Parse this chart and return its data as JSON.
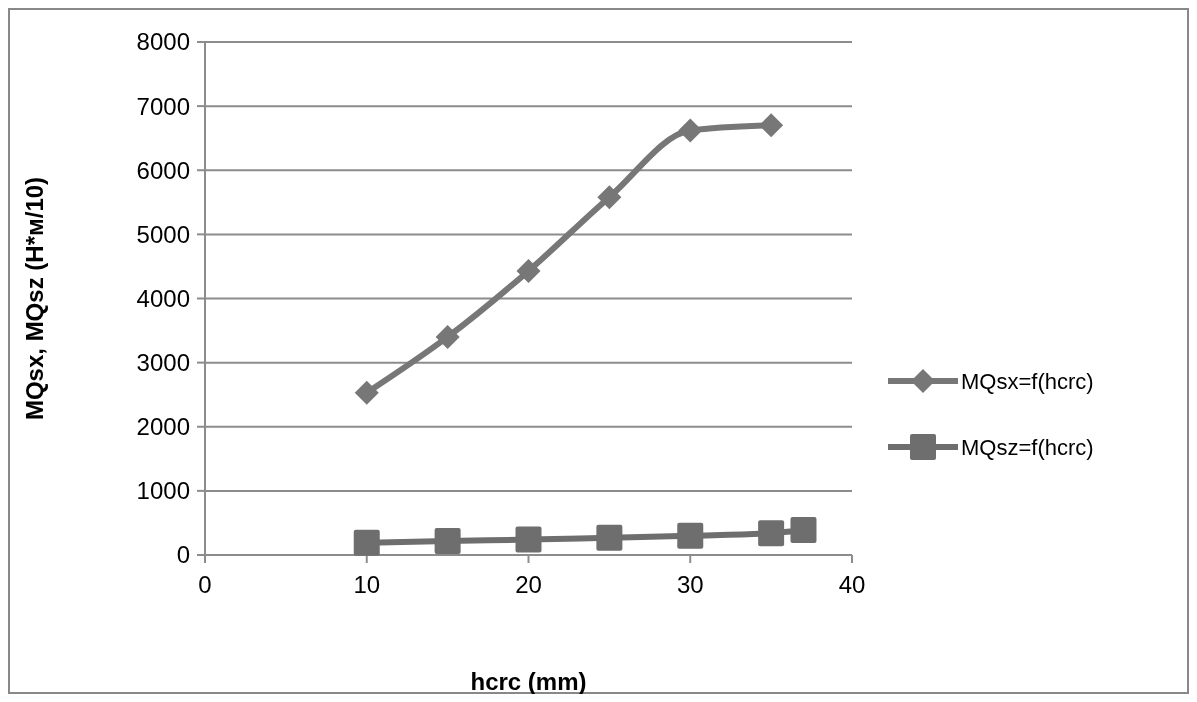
{
  "chart_data": {
    "type": "line",
    "xlabel": "hcrc (mm)",
    "ylabel": "MQsx, MQsz (H*м/10)",
    "xlim": [
      0,
      40
    ],
    "xticks": [
      0,
      10,
      20,
      30,
      40
    ],
    "ylim": [
      0,
      8000
    ],
    "yticks": [
      0,
      1000,
      2000,
      3000,
      4000,
      5000,
      6000,
      7000,
      8000
    ],
    "grid": "y",
    "legend": "right",
    "series": [
      {
        "name": "MQsx=f(hcrc)",
        "color": "#777777",
        "marker": "diamond",
        "x": [
          10,
          15,
          20,
          25,
          30,
          35
        ],
        "values": [
          2530,
          3400,
          4430,
          5580,
          6620,
          6700
        ]
      },
      {
        "name": "MQsz=f(hcrc)",
        "color": "#6e6e6e",
        "marker": "square",
        "x": [
          10,
          15,
          20,
          25,
          30,
          35,
          37
        ],
        "values": [
          190,
          220,
          240,
          270,
          300,
          340,
          390
        ]
      }
    ]
  }
}
